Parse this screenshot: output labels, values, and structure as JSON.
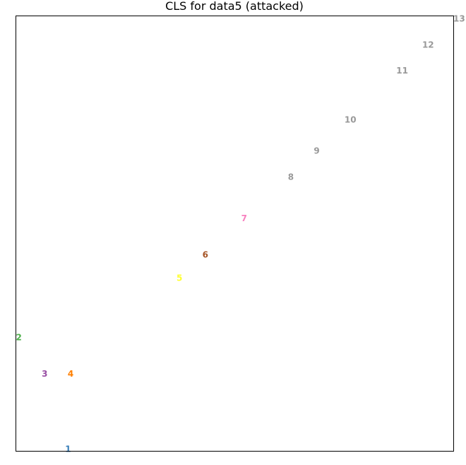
{
  "chart_data": {
    "type": "scatter",
    "title": "CLS for data5 (attacked)",
    "xlabel": "",
    "ylabel": "",
    "xlim": [
      0,
      16.9
    ],
    "ylim": [
      0,
      16.8
    ],
    "grid": false,
    "axes_ticks_shown": false,
    "points": [
      {
        "label": "1",
        "x": 2.0,
        "y": 0.1,
        "color": "#377eb8"
      },
      {
        "label": "2",
        "x": 0.1,
        "y": 4.4,
        "color": "#4daf4a"
      },
      {
        "label": "3",
        "x": 1.1,
        "y": 3.0,
        "color": "#984ea3"
      },
      {
        "label": "4",
        "x": 2.1,
        "y": 3.0,
        "color": "#ff7f00"
      },
      {
        "label": "5",
        "x": 6.3,
        "y": 6.7,
        "color": "#ffff33"
      },
      {
        "label": "6",
        "x": 7.3,
        "y": 7.6,
        "color": "#a65628"
      },
      {
        "label": "7",
        "x": 8.8,
        "y": 9.0,
        "color": "#f781bf"
      },
      {
        "label": "8",
        "x": 10.6,
        "y": 10.6,
        "color": "#999999"
      },
      {
        "label": "9",
        "x": 11.6,
        "y": 11.6,
        "color": "#999999"
      },
      {
        "label": "10",
        "x": 12.9,
        "y": 12.8,
        "color": "#999999"
      },
      {
        "label": "11",
        "x": 14.9,
        "y": 14.7,
        "color": "#999999"
      },
      {
        "label": "12",
        "x": 15.9,
        "y": 15.7,
        "color": "#999999"
      },
      {
        "label": "13",
        "x": 17.1,
        "y": 16.7,
        "color": "#999999"
      }
    ]
  }
}
